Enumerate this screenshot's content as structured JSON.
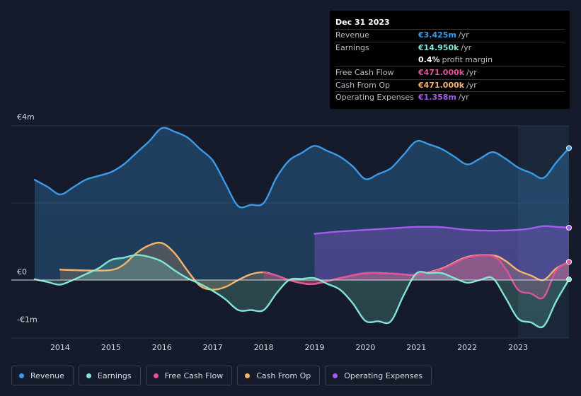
{
  "tooltip": {
    "date": "Dec 31 2023",
    "rows": [
      {
        "label": "Revenue",
        "value": "€3.425m",
        "unit": "/yr",
        "color": "#3b9ae8"
      },
      {
        "label": "Earnings",
        "value": "€14.950k",
        "unit": "/yr",
        "color": "#7fe6d2"
      },
      {
        "label": "",
        "value": "0.4%",
        "unit": "profit margin",
        "color": "#ffffff"
      },
      {
        "label": "Free Cash Flow",
        "value": "€471.000k",
        "unit": "/yr",
        "color": "#e0529c"
      },
      {
        "label": "Cash From Op",
        "value": "€471.000k",
        "unit": "/yr",
        "color": "#f5b36b"
      },
      {
        "label": "Operating Expenses",
        "value": "€1.358m",
        "unit": "/yr",
        "color": "#a65af0"
      }
    ]
  },
  "legend": [
    {
      "label": "Revenue",
      "color": "#3b9ae8"
    },
    {
      "label": "Earnings",
      "color": "#7fe6d2"
    },
    {
      "label": "Free Cash Flow",
      "color": "#e0529c"
    },
    {
      "label": "Cash From Op",
      "color": "#f5b36b"
    },
    {
      "label": "Operating Expenses",
      "color": "#a65af0"
    }
  ],
  "chart_data": {
    "type": "area",
    "title": "",
    "xlabel": "",
    "ylabel": "",
    "ylim": [
      -1.5,
      4.0
    ],
    "xlim": [
      2013.5,
      2024.0
    ],
    "y_ticks": [
      {
        "value": 4,
        "label": "€4m"
      },
      {
        "value": 0,
        "label": "€0"
      },
      {
        "value": -1,
        "label": "-€1m"
      }
    ],
    "x_ticks": [
      "2014",
      "2015",
      "2016",
      "2017",
      "2018",
      "2019",
      "2020",
      "2021",
      "2022",
      "2023"
    ],
    "forecast_start": 2023.0,
    "series": [
      {
        "name": "Revenue",
        "color": "#3b9ae8",
        "points": [
          [
            2013.5,
            2.6
          ],
          [
            2013.75,
            2.42
          ],
          [
            2014.0,
            2.22
          ],
          [
            2014.25,
            2.4
          ],
          [
            2014.5,
            2.6
          ],
          [
            2014.75,
            2.7
          ],
          [
            2015.0,
            2.8
          ],
          [
            2015.25,
            3.0
          ],
          [
            2015.5,
            3.3
          ],
          [
            2015.75,
            3.6
          ],
          [
            2016.0,
            3.94
          ],
          [
            2016.25,
            3.85
          ],
          [
            2016.5,
            3.7
          ],
          [
            2016.75,
            3.4
          ],
          [
            2017.0,
            3.1
          ],
          [
            2017.25,
            2.5
          ],
          [
            2017.5,
            1.92
          ],
          [
            2017.75,
            1.95
          ],
          [
            2018.0,
            2.0
          ],
          [
            2018.25,
            2.65
          ],
          [
            2018.5,
            3.1
          ],
          [
            2018.75,
            3.3
          ],
          [
            2019.0,
            3.48
          ],
          [
            2019.25,
            3.35
          ],
          [
            2019.5,
            3.2
          ],
          [
            2019.75,
            2.95
          ],
          [
            2020.0,
            2.62
          ],
          [
            2020.25,
            2.75
          ],
          [
            2020.5,
            2.9
          ],
          [
            2020.75,
            3.25
          ],
          [
            2021.0,
            3.6
          ],
          [
            2021.25,
            3.52
          ],
          [
            2021.5,
            3.4
          ],
          [
            2021.75,
            3.2
          ],
          [
            2022.0,
            3.0
          ],
          [
            2022.25,
            3.15
          ],
          [
            2022.5,
            3.32
          ],
          [
            2022.75,
            3.15
          ],
          [
            2023.0,
            2.92
          ],
          [
            2023.25,
            2.78
          ],
          [
            2023.5,
            2.65
          ],
          [
            2023.75,
            3.05
          ],
          [
            2024.0,
            3.425
          ]
        ]
      },
      {
        "name": "Operating Expenses",
        "color": "#a65af0",
        "points": [
          [
            2019.0,
            1.2
          ],
          [
            2019.5,
            1.26
          ],
          [
            2020.0,
            1.3
          ],
          [
            2020.5,
            1.34
          ],
          [
            2021.0,
            1.38
          ],
          [
            2021.5,
            1.37
          ],
          [
            2022.0,
            1.3
          ],
          [
            2022.5,
            1.28
          ],
          [
            2023.0,
            1.3
          ],
          [
            2023.25,
            1.34
          ],
          [
            2023.5,
            1.4
          ],
          [
            2023.75,
            1.38
          ],
          [
            2024.0,
            1.358
          ]
        ]
      },
      {
        "name": "Cash From Op",
        "color": "#f5b36b",
        "points": [
          [
            2014.0,
            0.27
          ],
          [
            2014.5,
            0.25
          ],
          [
            2015.0,
            0.26
          ],
          [
            2015.25,
            0.4
          ],
          [
            2015.5,
            0.7
          ],
          [
            2015.75,
            0.9
          ],
          [
            2016.0,
            0.96
          ],
          [
            2016.25,
            0.7
          ],
          [
            2016.5,
            0.25
          ],
          [
            2016.75,
            -0.15
          ],
          [
            2017.0,
            -0.25
          ],
          [
            2017.25,
            -0.18
          ],
          [
            2017.5,
            0.0
          ],
          [
            2017.75,
            0.15
          ],
          [
            2018.0,
            0.2
          ],
          [
            2018.25,
            0.12
          ],
          [
            2018.5,
            0.0
          ],
          [
            2018.75,
            -0.08
          ],
          [
            2019.0,
            -0.1
          ],
          [
            2019.5,
            0.05
          ],
          [
            2020.0,
            0.18
          ],
          [
            2020.5,
            0.17
          ],
          [
            2021.0,
            0.14
          ],
          [
            2021.5,
            0.3
          ],
          [
            2022.0,
            0.6
          ],
          [
            2022.5,
            0.64
          ],
          [
            2022.75,
            0.5
          ],
          [
            2023.0,
            0.25
          ],
          [
            2023.25,
            0.12
          ],
          [
            2023.5,
            0.0
          ],
          [
            2023.75,
            0.3
          ],
          [
            2024.0,
            0.471
          ]
        ]
      },
      {
        "name": "Free Cash Flow",
        "color": "#e0529c",
        "points": [
          [
            2018.0,
            0.2
          ],
          [
            2018.25,
            0.12
          ],
          [
            2018.5,
            0.0
          ],
          [
            2018.75,
            -0.08
          ],
          [
            2019.0,
            -0.1
          ],
          [
            2019.5,
            0.05
          ],
          [
            2020.0,
            0.18
          ],
          [
            2020.5,
            0.17
          ],
          [
            2021.0,
            0.14
          ],
          [
            2021.5,
            0.28
          ],
          [
            2022.0,
            0.58
          ],
          [
            2022.5,
            0.62
          ],
          [
            2022.75,
            0.3
          ],
          [
            2023.0,
            -0.25
          ],
          [
            2023.25,
            -0.35
          ],
          [
            2023.5,
            -0.45
          ],
          [
            2023.75,
            0.25
          ],
          [
            2024.0,
            0.471
          ]
        ]
      },
      {
        "name": "Earnings",
        "color": "#7fe6d2",
        "points": [
          [
            2013.5,
            0.02
          ],
          [
            2013.75,
            -0.05
          ],
          [
            2014.0,
            -0.12
          ],
          [
            2014.25,
            0.0
          ],
          [
            2014.5,
            0.15
          ],
          [
            2014.75,
            0.3
          ],
          [
            2015.0,
            0.52
          ],
          [
            2015.25,
            0.58
          ],
          [
            2015.5,
            0.65
          ],
          [
            2015.75,
            0.6
          ],
          [
            2016.0,
            0.48
          ],
          [
            2016.25,
            0.25
          ],
          [
            2016.5,
            0.05
          ],
          [
            2016.75,
            -0.1
          ],
          [
            2017.0,
            -0.28
          ],
          [
            2017.25,
            -0.5
          ],
          [
            2017.5,
            -0.78
          ],
          [
            2017.75,
            -0.78
          ],
          [
            2018.0,
            -0.78
          ],
          [
            2018.25,
            -0.35
          ],
          [
            2018.5,
            0.0
          ],
          [
            2018.75,
            0.03
          ],
          [
            2019.0,
            0.05
          ],
          [
            2019.25,
            -0.1
          ],
          [
            2019.5,
            -0.25
          ],
          [
            2019.75,
            -0.6
          ],
          [
            2020.0,
            -1.06
          ],
          [
            2020.25,
            -1.07
          ],
          [
            2020.5,
            -1.07
          ],
          [
            2020.75,
            -0.4
          ],
          [
            2021.0,
            0.17
          ],
          [
            2021.25,
            0.18
          ],
          [
            2021.5,
            0.18
          ],
          [
            2021.75,
            0.05
          ],
          [
            2022.0,
            -0.07
          ],
          [
            2022.25,
            0.0
          ],
          [
            2022.5,
            0.05
          ],
          [
            2022.75,
            -0.45
          ],
          [
            2023.0,
            -1.0
          ],
          [
            2023.25,
            -1.1
          ],
          [
            2023.5,
            -1.2
          ],
          [
            2023.75,
            -0.55
          ],
          [
            2024.0,
            0.015
          ]
        ]
      }
    ]
  }
}
